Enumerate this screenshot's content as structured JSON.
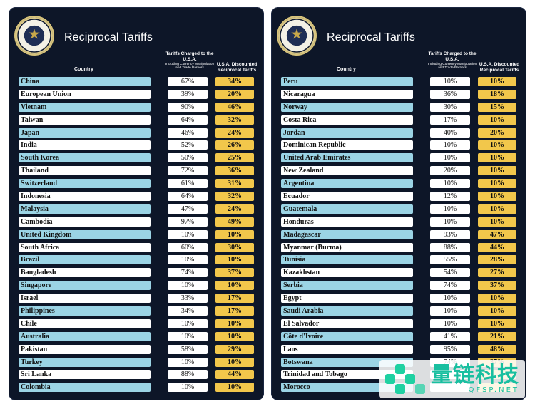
{
  "boards": [
    {
      "title": "Reciprocal Tariffs",
      "headers": {
        "country": "Country",
        "charged": "Tariffs Charged to the U.S.A.",
        "charged_sub": "Including Currency Manipulation and Trade Barriers",
        "discount": "U.S.A. Discounted Reciprocal Tariffs"
      },
      "rows": [
        {
          "country": "China",
          "charged": "67%",
          "discount": "34%"
        },
        {
          "country": "European Union",
          "charged": "39%",
          "discount": "20%"
        },
        {
          "country": "Vietnam",
          "charged": "90%",
          "discount": "46%"
        },
        {
          "country": "Taiwan",
          "charged": "64%",
          "discount": "32%"
        },
        {
          "country": "Japan",
          "charged": "46%",
          "discount": "24%"
        },
        {
          "country": "India",
          "charged": "52%",
          "discount": "26%"
        },
        {
          "country": "South Korea",
          "charged": "50%",
          "discount": "25%"
        },
        {
          "country": "Thailand",
          "charged": "72%",
          "discount": "36%"
        },
        {
          "country": "Switzerland",
          "charged": "61%",
          "discount": "31%"
        },
        {
          "country": "Indonesia",
          "charged": "64%",
          "discount": "32%"
        },
        {
          "country": "Malaysia",
          "charged": "47%",
          "discount": "24%"
        },
        {
          "country": "Cambodia",
          "charged": "97%",
          "discount": "49%"
        },
        {
          "country": "United Kingdom",
          "charged": "10%",
          "discount": "10%"
        },
        {
          "country": "South Africa",
          "charged": "60%",
          "discount": "30%"
        },
        {
          "country": "Brazil",
          "charged": "10%",
          "discount": "10%"
        },
        {
          "country": "Bangladesh",
          "charged": "74%",
          "discount": "37%"
        },
        {
          "country": "Singapore",
          "charged": "10%",
          "discount": "10%"
        },
        {
          "country": "Israel",
          "charged": "33%",
          "discount": "17%"
        },
        {
          "country": "Philippines",
          "charged": "34%",
          "discount": "17%"
        },
        {
          "country": "Chile",
          "charged": "10%",
          "discount": "10%"
        },
        {
          "country": "Australia",
          "charged": "10%",
          "discount": "10%"
        },
        {
          "country": "Pakistan",
          "charged": "58%",
          "discount": "29%"
        },
        {
          "country": "Turkey",
          "charged": "10%",
          "discount": "10%"
        },
        {
          "country": "Sri Lanka",
          "charged": "88%",
          "discount": "44%"
        },
        {
          "country": "Colombia",
          "charged": "10%",
          "discount": "10%"
        }
      ]
    },
    {
      "title": "Reciprocal Tariffs",
      "headers": {
        "country": "Country",
        "charged": "Tariffs Charged to the U.S.A.",
        "charged_sub": "Including Currency Manipulation and Trade Barriers",
        "discount": "U.S.A. Discounted Reciprocal Tariffs"
      },
      "rows": [
        {
          "country": "Peru",
          "charged": "10%",
          "discount": "10%"
        },
        {
          "country": "Nicaragua",
          "charged": "36%",
          "discount": "18%"
        },
        {
          "country": "Norway",
          "charged": "30%",
          "discount": "15%"
        },
        {
          "country": "Costa Rica",
          "charged": "17%",
          "discount": "10%"
        },
        {
          "country": "Jordan",
          "charged": "40%",
          "discount": "20%"
        },
        {
          "country": "Dominican Republic",
          "charged": "10%",
          "discount": "10%"
        },
        {
          "country": "United Arab Emirates",
          "charged": "10%",
          "discount": "10%"
        },
        {
          "country": "New Zealand",
          "charged": "20%",
          "discount": "10%"
        },
        {
          "country": "Argentina",
          "charged": "10%",
          "discount": "10%"
        },
        {
          "country": "Ecuador",
          "charged": "12%",
          "discount": "10%"
        },
        {
          "country": "Guatemala",
          "charged": "10%",
          "discount": "10%"
        },
        {
          "country": "Honduras",
          "charged": "10%",
          "discount": "10%"
        },
        {
          "country": "Madagascar",
          "charged": "93%",
          "discount": "47%"
        },
        {
          "country": "Myanmar (Burma)",
          "charged": "88%",
          "discount": "44%"
        },
        {
          "country": "Tunisia",
          "charged": "55%",
          "discount": "28%"
        },
        {
          "country": "Kazakhstan",
          "charged": "54%",
          "discount": "27%"
        },
        {
          "country": "Serbia",
          "charged": "74%",
          "discount": "37%"
        },
        {
          "country": "Egypt",
          "charged": "10%",
          "discount": "10%"
        },
        {
          "country": "Saudi Arabia",
          "charged": "10%",
          "discount": "10%"
        },
        {
          "country": "El Salvador",
          "charged": "10%",
          "discount": "10%"
        },
        {
          "country": "Côte d'Ivoire",
          "charged": "41%",
          "discount": "21%"
        },
        {
          "country": "Laos",
          "charged": "95%",
          "discount": "48%"
        },
        {
          "country": "Botswana",
          "charged": "74%",
          "discount": "37%"
        },
        {
          "country": "Trinidad and Tobago",
          "charged": "",
          "discount": ""
        },
        {
          "country": "Morocco",
          "charged": "",
          "discount": ""
        }
      ]
    }
  ],
  "watermark": {
    "text": "量链科技",
    "subtext": "QFSP.NET"
  },
  "colors": {
    "board_bg": "#0d1628",
    "country_alt": "#9bd4e5",
    "country_norm": "#ffffff",
    "discount_bg": "#f2c74b",
    "watermark": "#19bfa0"
  }
}
